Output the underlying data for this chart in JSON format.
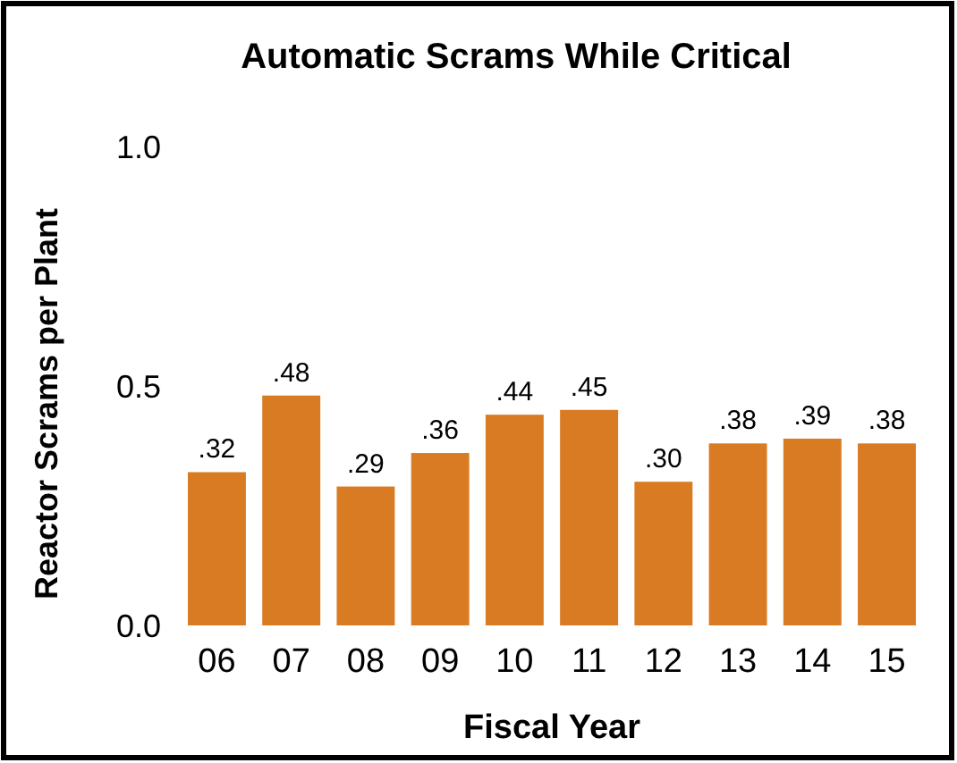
{
  "chart_data": {
    "type": "bar",
    "title": "Automatic Scrams While Critical",
    "xlabel": "Fiscal Year",
    "ylabel": "Reactor Scrams per Plant",
    "categories": [
      "06",
      "07",
      "08",
      "09",
      "10",
      "11",
      "12",
      "13",
      "14",
      "15"
    ],
    "values": [
      0.32,
      0.48,
      0.29,
      0.36,
      0.44,
      0.45,
      0.3,
      0.38,
      0.39,
      0.38
    ],
    "value_labels": [
      ".32",
      ".48",
      ".29",
      ".36",
      ".44",
      ".45",
      ".30",
      ".38",
      ".39",
      ".38"
    ],
    "color": "#d97b22",
    "ylim": [
      0,
      1
    ],
    "yticks": [
      {
        "value": 0,
        "label": "0.0"
      },
      0.5,
      {
        "value": 1,
        "label": "1.0"
      }
    ],
    "grid": false
  }
}
